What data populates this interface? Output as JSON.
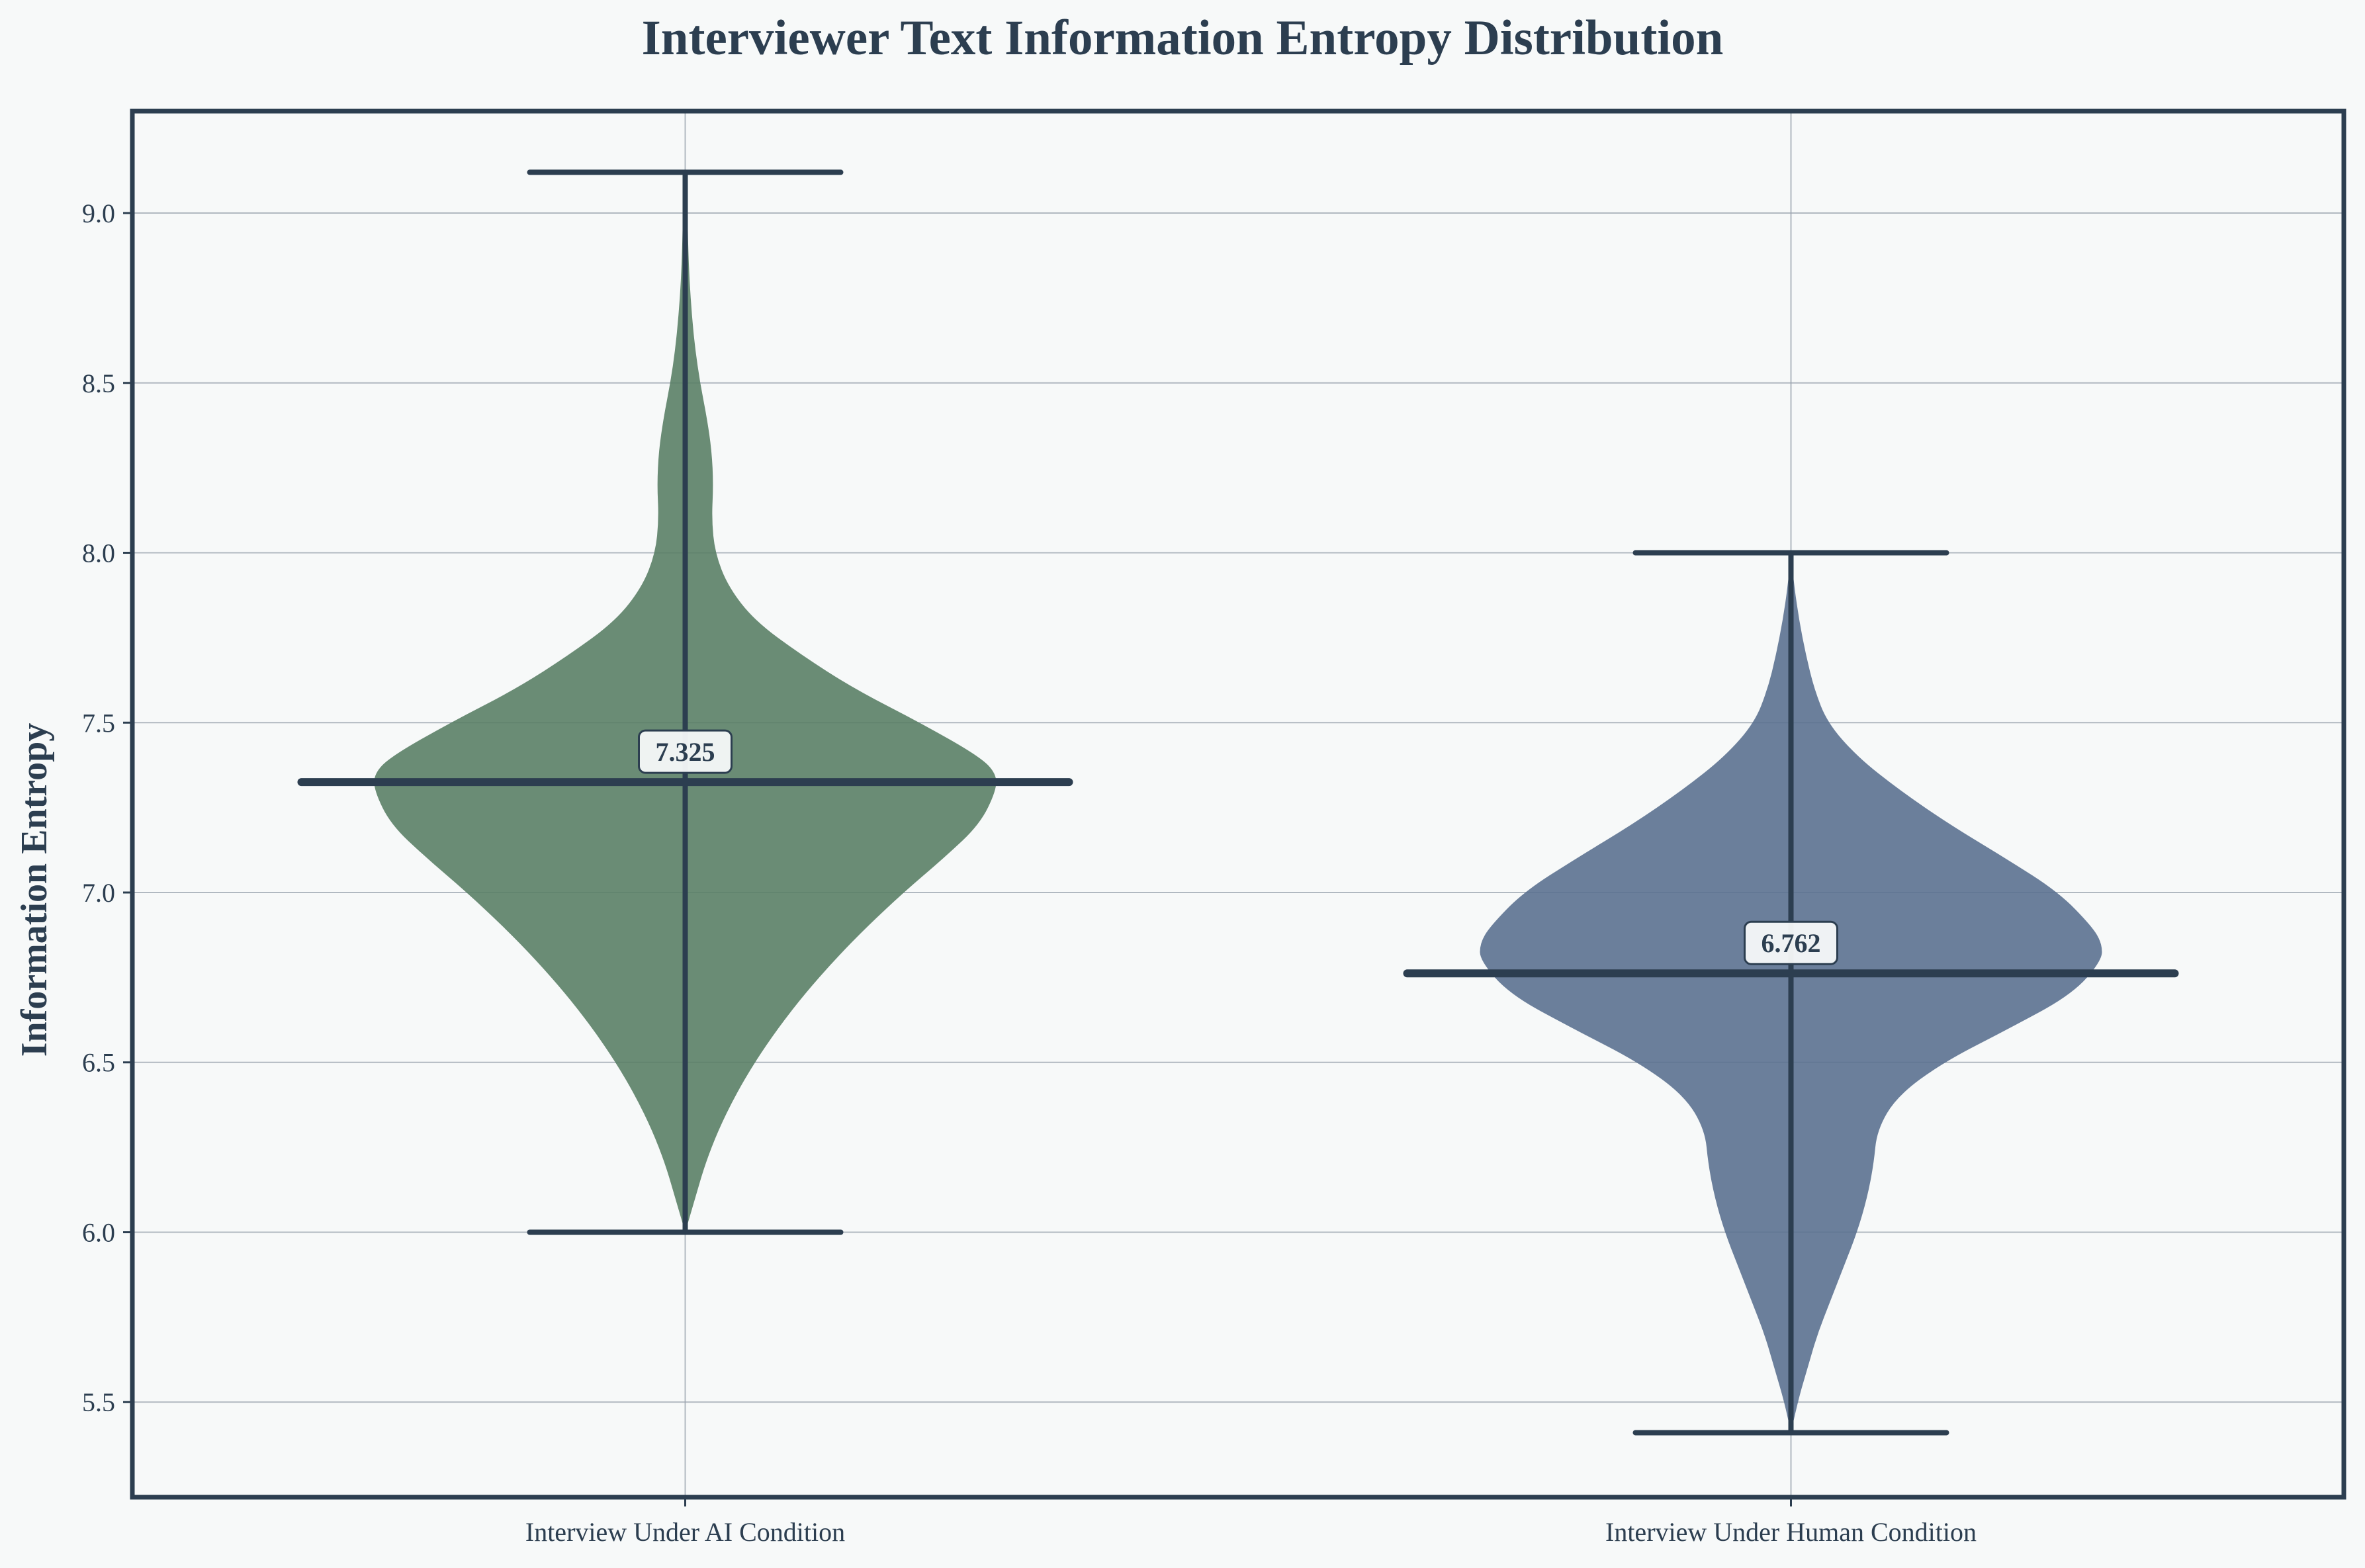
{
  "chart_data": {
    "type": "violin",
    "title": "Interviewer Text Information Entropy Distribution",
    "xlabel": "",
    "ylabel": "Information Entropy",
    "ylim": [
      5.22,
      9.3
    ],
    "yticks": [
      5.5,
      6.0,
      6.5,
      7.0,
      7.5,
      8.0,
      8.5,
      9.0
    ],
    "ytick_labels": [
      "5.5",
      "6.0",
      "6.5",
      "7.0",
      "7.5",
      "8.0",
      "8.5",
      "9.0"
    ],
    "grid": true,
    "categories": [
      "Interview Under AI Condition",
      "Interview Under Human Condition"
    ],
    "series": [
      {
        "category": "Interview Under AI Condition",
        "color": "#5a7f66",
        "min": 6.0,
        "max": 9.12,
        "mean": 7.325,
        "mean_label": "7.325",
        "density_profile": [
          [
            6.0,
            0.0
          ],
          [
            6.1,
            0.03
          ],
          [
            6.2,
            0.06
          ],
          [
            6.3,
            0.1
          ],
          [
            6.4,
            0.15
          ],
          [
            6.5,
            0.21
          ],
          [
            6.6,
            0.28
          ],
          [
            6.7,
            0.36
          ],
          [
            6.8,
            0.45
          ],
          [
            6.9,
            0.55
          ],
          [
            7.0,
            0.66
          ],
          [
            7.1,
            0.78
          ],
          [
            7.2,
            0.89
          ],
          [
            7.3,
            0.94
          ],
          [
            7.35,
            0.94
          ],
          [
            7.4,
            0.89
          ],
          [
            7.5,
            0.71
          ],
          [
            7.6,
            0.51
          ],
          [
            7.7,
            0.35
          ],
          [
            7.8,
            0.21
          ],
          [
            7.9,
            0.13
          ],
          [
            8.0,
            0.09
          ],
          [
            8.1,
            0.08
          ],
          [
            8.2,
            0.085
          ],
          [
            8.3,
            0.08
          ],
          [
            8.4,
            0.065
          ],
          [
            8.5,
            0.045
          ],
          [
            8.6,
            0.03
          ],
          [
            8.7,
            0.02
          ],
          [
            8.8,
            0.013
          ],
          [
            8.9,
            0.009
          ],
          [
            9.0,
            0.007
          ],
          [
            9.12,
            0.0
          ]
        ]
      },
      {
        "category": "Interview Under Human Condition",
        "color": "#5b7190",
        "min": 5.41,
        "max": 8.0,
        "mean": 6.762,
        "mean_label": "6.762",
        "density_profile": [
          [
            5.41,
            0.0
          ],
          [
            5.5,
            0.02
          ],
          [
            5.6,
            0.05
          ],
          [
            5.7,
            0.08
          ],
          [
            5.8,
            0.12
          ],
          [
            5.9,
            0.16
          ],
          [
            6.0,
            0.2
          ],
          [
            6.1,
            0.23
          ],
          [
            6.2,
            0.25
          ],
          [
            6.3,
            0.26
          ],
          [
            6.4,
            0.32
          ],
          [
            6.5,
            0.46
          ],
          [
            6.6,
            0.66
          ],
          [
            6.7,
            0.85
          ],
          [
            6.8,
            0.94
          ],
          [
            6.85,
            0.94
          ],
          [
            6.9,
            0.91
          ],
          [
            7.0,
            0.81
          ],
          [
            7.1,
            0.65
          ],
          [
            7.2,
            0.48
          ],
          [
            7.3,
            0.33
          ],
          [
            7.4,
            0.2
          ],
          [
            7.5,
            0.11
          ],
          [
            7.6,
            0.07
          ],
          [
            7.7,
            0.045
          ],
          [
            7.8,
            0.025
          ],
          [
            7.9,
            0.01
          ],
          [
            8.0,
            0.0
          ]
        ]
      }
    ],
    "colors": {
      "background": "#f7f9f9",
      "frame": "#2c3e50",
      "grid": "#9aa3ad",
      "text": "#2c3e50",
      "mean_label_box": "#f7f9f9"
    }
  }
}
